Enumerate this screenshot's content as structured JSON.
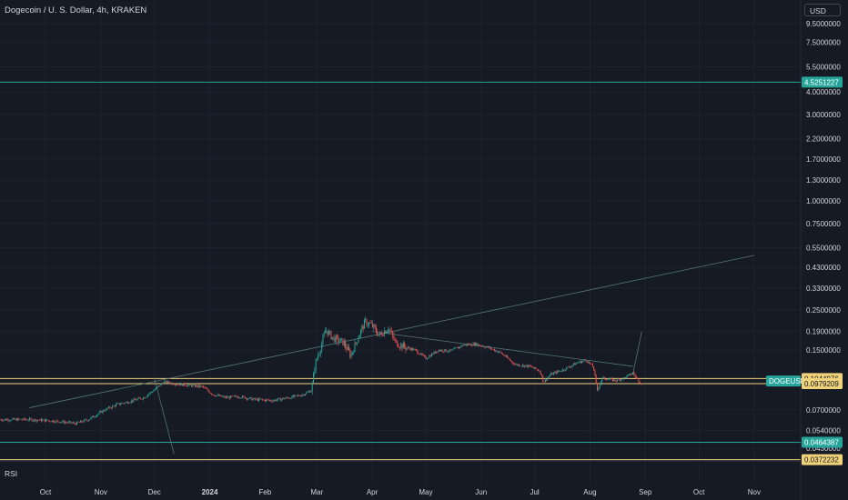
{
  "header": {
    "title": "Dogecoin / U. S. Dollar, 4h, KRAKEN",
    "currency_label": "USD"
  },
  "indicator_label": "RSI",
  "colors": {
    "background": "#161a25",
    "grid": "#1f2330",
    "text": "#d1d4dc",
    "up": "#26a69a",
    "down": "#ef5350",
    "teal_line": "#26a69a",
    "yellow_line": "#f0d27a"
  },
  "chart_data": {
    "type": "candlestick",
    "symbol": "DOGEUSD",
    "interval": "4h",
    "scale": "log",
    "y_ticks": [
      "9.5000000",
      "7.5000000",
      "5.5000000",
      "4.0000000",
      "3.0000000",
      "2.2000000",
      "1.7000000",
      "1.3000000",
      "1.0000000",
      "0.7500000",
      "0.5500000",
      "0.4300000",
      "0.3300000",
      "0.2500000",
      "0.1900000",
      "0.1500000",
      "0.0700000",
      "0.0540000",
      "0.0430000"
    ],
    "x_ticks": [
      "Oct",
      "Nov",
      "Dec",
      "2024",
      "Feb",
      "Mar",
      "Apr",
      "May",
      "Jun",
      "Jul",
      "Aug",
      "Sep",
      "Oct",
      "Nov"
    ],
    "price_labels": [
      {
        "text": "4.5251227",
        "style": "teal"
      },
      {
        "text": "DOGEUSD",
        "style": "teal-tag"
      },
      {
        "text": "0.1044976",
        "style": "yellow"
      },
      {
        "text": "0.0979209",
        "style": "yellow"
      },
      {
        "text": "0.0464387",
        "style": "teal"
      },
      {
        "text": "0.0372232",
        "style": "yellow"
      }
    ],
    "horizontal_levels": [
      {
        "price": 4.5251227,
        "color": "teal"
      },
      {
        "price": 0.1044976,
        "color": "yellow"
      },
      {
        "price": 0.0979209,
        "color": "yellow"
      },
      {
        "price": 0.0464387,
        "color": "teal"
      },
      {
        "price": 0.0372232,
        "color": "yellow"
      }
    ],
    "trendlines": [
      {
        "from": [
          "2023-09-22",
          0.072
        ],
        "to": [
          "2024-11-01",
          0.5
        ]
      },
      {
        "from": [
          "2023-12-01",
          0.105
        ],
        "to": [
          "2023-12-12",
          0.04
        ]
      },
      {
        "from": [
          "2024-04-01",
          0.19
        ],
        "to": [
          "2024-08-25",
          0.122
        ]
      },
      {
        "from": [
          "2024-08-25",
          0.11
        ],
        "to": [
          "2024-08-30",
          0.19
        ]
      }
    ],
    "price_path": [
      [
        "2023-09-22",
        0.062
      ],
      [
        "2023-10-05",
        0.061
      ],
      [
        "2023-10-18",
        0.059
      ],
      [
        "2023-10-25",
        0.062
      ],
      [
        "2023-11-03",
        0.07
      ],
      [
        "2023-11-10",
        0.075
      ],
      [
        "2023-11-17",
        0.078
      ],
      [
        "2023-11-25",
        0.082
      ],
      [
        "2023-12-02",
        0.092
      ],
      [
        "2023-12-06",
        0.1
      ],
      [
        "2023-12-12",
        0.098
      ],
      [
        "2023-12-20",
        0.096
      ],
      [
        "2023-12-28",
        0.094
      ],
      [
        "2024-01-03",
        0.085
      ],
      [
        "2024-01-10",
        0.082
      ],
      [
        "2024-01-18",
        0.083
      ],
      [
        "2024-01-26",
        0.08
      ],
      [
        "2024-02-05",
        0.079
      ],
      [
        "2024-02-15",
        0.082
      ],
      [
        "2024-02-22",
        0.085
      ],
      [
        "2024-02-27",
        0.09
      ],
      [
        "2024-02-29",
        0.125
      ],
      [
        "2024-03-04",
        0.165
      ],
      [
        "2024-03-06",
        0.195
      ],
      [
        "2024-03-10",
        0.175
      ],
      [
        "2024-03-16",
        0.165
      ],
      [
        "2024-03-20",
        0.14
      ],
      [
        "2024-03-25",
        0.185
      ],
      [
        "2024-03-28",
        0.215
      ],
      [
        "2024-04-01",
        0.205
      ],
      [
        "2024-04-05",
        0.18
      ],
      [
        "2024-04-10",
        0.2
      ],
      [
        "2024-04-14",
        0.165
      ],
      [
        "2024-04-20",
        0.155
      ],
      [
        "2024-04-25",
        0.15
      ],
      [
        "2024-05-01",
        0.135
      ],
      [
        "2024-05-08",
        0.15
      ],
      [
        "2024-05-15",
        0.148
      ],
      [
        "2024-05-22",
        0.16
      ],
      [
        "2024-05-29",
        0.162
      ],
      [
        "2024-06-05",
        0.155
      ],
      [
        "2024-06-12",
        0.145
      ],
      [
        "2024-06-20",
        0.125
      ],
      [
        "2024-06-28",
        0.122
      ],
      [
        "2024-07-04",
        0.115
      ],
      [
        "2024-07-06",
        0.1
      ],
      [
        "2024-07-10",
        0.11
      ],
      [
        "2024-07-18",
        0.118
      ],
      [
        "2024-07-25",
        0.128
      ],
      [
        "2024-07-30",
        0.132
      ],
      [
        "2024-08-03",
        0.12
      ],
      [
        "2024-08-05",
        0.09
      ],
      [
        "2024-08-08",
        0.105
      ],
      [
        "2024-08-15",
        0.102
      ],
      [
        "2024-08-20",
        0.105
      ],
      [
        "2024-08-25",
        0.112
      ],
      [
        "2024-08-27",
        0.105
      ],
      [
        "2024-08-30",
        0.098
      ]
    ]
  }
}
